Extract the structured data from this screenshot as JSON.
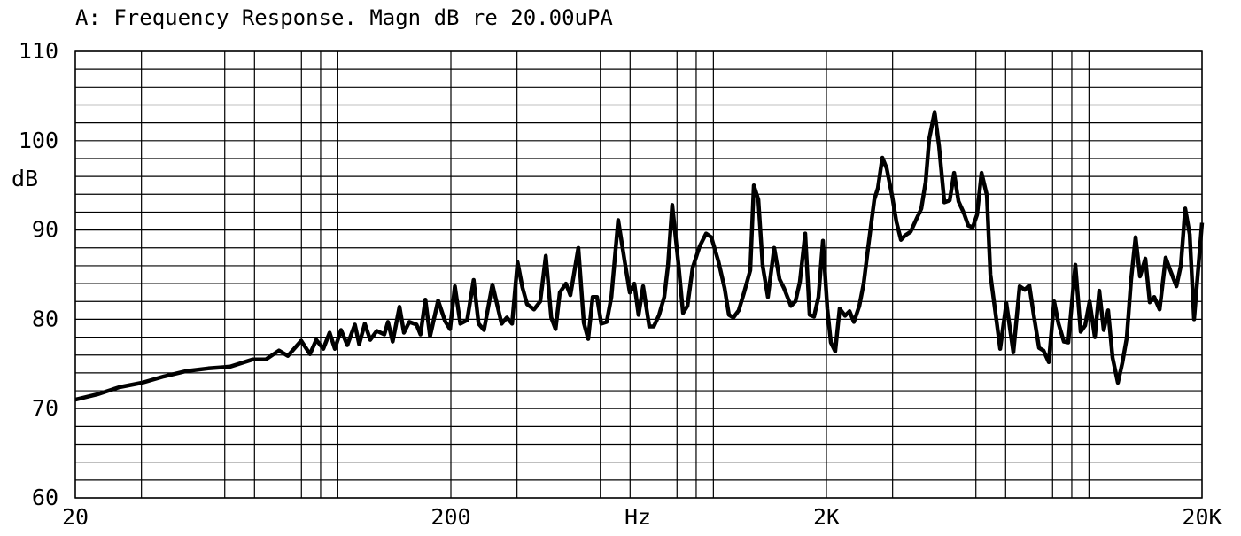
{
  "chart_data": {
    "type": "line",
    "title": "A: Frequency Response. Magn dB re 20.00uPA",
    "ylabel": "dB",
    "xlabel": "Hz",
    "log_x": true,
    "xlim": [
      20,
      20000
    ],
    "ylim": [
      60,
      110
    ],
    "xticks": [
      20,
      200,
      {
        "value": 2000,
        "label": "2K"
      },
      {
        "value": 20000,
        "label": "20K"
      }
    ],
    "yticks": [
      60,
      70,
      80,
      90,
      100,
      110
    ],
    "xgrid": [
      30,
      50,
      60,
      80,
      90,
      100,
      300,
      500,
      600,
      800,
      900,
      1000,
      3000,
      5000,
      6000,
      8000,
      9000,
      10000
    ],
    "ygrid": [
      62,
      64,
      66,
      68,
      72,
      74,
      76,
      78,
      82,
      84,
      86,
      88,
      92,
      94,
      96,
      98,
      102,
      104,
      106,
      108
    ],
    "series": [
      {
        "color": "#000000",
        "x": [
          20,
          22.9,
          26.2,
          30.1,
          34.4,
          39.4,
          45.2,
          51.7,
          59.3,
          64.3,
          69.7,
          73.6,
          79.9,
          84.3,
          87.6,
          91.5,
          95.1,
          98.2,
          102,
          106,
          111,
          114,
          118,
          122,
          127,
          133,
          136,
          140,
          146,
          150,
          155,
          162,
          166,
          171,
          176,
          185,
          193,
          199,
          205,
          212,
          221,
          230,
          237,
          245,
          258,
          273,
          282,
          291,
          301,
          310,
          319,
          333,
          346,
          358,
          370,
          380,
          390,
          405,
          416,
          437,
          452,
          464,
          477,
          490,
          503,
          520,
          535,
          558,
          583,
          599,
          616,
          632,
          650,
          675,
          694,
          717,
          740,
          757,
          777,
          808,
          830,
          853,
          881,
          920,
          956,
          987,
          1031,
          1071,
          1100,
          1131,
          1168,
          1207,
          1254,
          1281,
          1317,
          1353,
          1397,
          1452,
          1500,
          1541,
          1609,
          1654,
          1699,
          1756,
          1804,
          1854,
          1905,
          1957,
          2011,
          2055,
          2111,
          2169,
          2242,
          2304,
          2367,
          2446,
          2513,
          2582,
          2682,
          2742,
          2817,
          2894,
          2990,
          3072,
          3157,
          3243,
          3351,
          3462,
          3577,
          3675,
          3756,
          3881,
          3988,
          4120,
          4257,
          4374,
          4494,
          4643,
          4771,
          4902,
          5036,
          5175,
          5347,
          5464,
          5645,
          5800,
          6025,
          6291,
          6536,
          6750,
          6936,
          7127,
          7362,
          7566,
          7816,
          8075,
          8297,
          8572,
          8808,
          9200,
          9506,
          9768,
          10038,
          10368,
          10654,
          10948,
          11247,
          11557,
          11940,
          12269,
          12607,
          12954,
          13311,
          13677,
          14131,
          14519,
          14920,
          15415,
          16012,
          16453,
          17091,
          17561,
          18044,
          18541,
          19049,
          20000
        ],
        "values": [
          71.0,
          71.6,
          72.4,
          72.9,
          73.6,
          74.2,
          74.5,
          74.7,
          75.5,
          75.5,
          76.5,
          75.9,
          77.6,
          76.1,
          77.7,
          76.7,
          78.5,
          76.7,
          78.8,
          77.1,
          79.4,
          77.2,
          79.5,
          77.7,
          78.7,
          78.3,
          79.7,
          77.5,
          81.4,
          78.5,
          79.7,
          79.4,
          78.3,
          82.2,
          78.1,
          82.1,
          79.8,
          78.9,
          83.7,
          79.5,
          79.9,
          84.4,
          79.5,
          78.8,
          83.9,
          79.5,
          80.2,
          79.5,
          86.4,
          83.6,
          81.7,
          81.1,
          82.0,
          87.1,
          80.2,
          78.9,
          83.0,
          84.0,
          82.7,
          88.0,
          79.6,
          77.8,
          82.5,
          82.5,
          79.5,
          79.7,
          82.5,
          91.1,
          86.0,
          83.0,
          84.0,
          80.5,
          83.7,
          79.2,
          79.2,
          80.5,
          82.5,
          86.0,
          92.8,
          86.0,
          80.7,
          81.5,
          85.8,
          88.2,
          89.6,
          89.2,
          86.5,
          83.5,
          80.5,
          80.2,
          81.0,
          83.0,
          85.5,
          95.0,
          93.4,
          86.0,
          82.5,
          88.0,
          84.5,
          83.5,
          81.5,
          82.0,
          84.2,
          89.6,
          80.5,
          80.3,
          82.5,
          88.8,
          81.2,
          77.4,
          76.4,
          81.2,
          80.4,
          80.9,
          79.7,
          81.5,
          84.0,
          88.0,
          93.4,
          94.7,
          98.1,
          96.9,
          93.9,
          90.9,
          88.9,
          89.4,
          89.8,
          91.1,
          92.4,
          95.4,
          100.2,
          103.2,
          99.4,
          93.1,
          93.3,
          96.4,
          93.2,
          91.9,
          90.5,
          90.3,
          91.7,
          96.4,
          93.9,
          85.0,
          80.5,
          76.7,
          81.8,
          76.3,
          83.7,
          83.3,
          83.8,
          80.5,
          76.8,
          76.5,
          75.2,
          82.0,
          79.5,
          77.5,
          77.4,
          86.1,
          78.6,
          79.3,
          82.0,
          78.0,
          83.2,
          78.8,
          81.0,
          75.7,
          72.9,
          75.1,
          77.9,
          84.5,
          89.2,
          84.8,
          86.8,
          81.9,
          82.5,
          81.1,
          86.9,
          85.5,
          83.7,
          86.0,
          92.4,
          89.5,
          80.0,
          90.8
        ]
      }
    ]
  }
}
